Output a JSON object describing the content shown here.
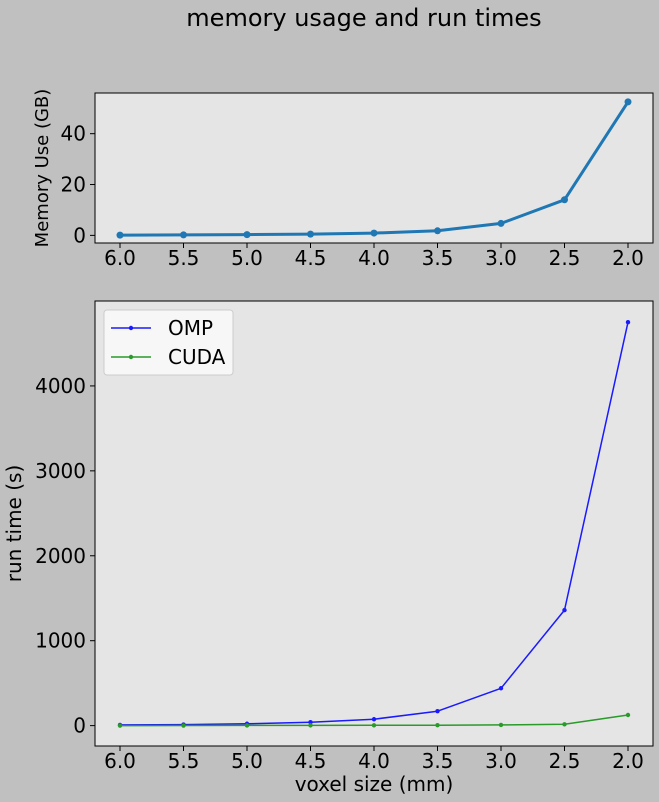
{
  "title": "memory usage and run times",
  "chart_data": [
    {
      "type": "line",
      "ylabel": "Memory Use (GB)",
      "xlabel": "",
      "x": [
        6.0,
        5.5,
        5.0,
        4.5,
        4.0,
        3.5,
        3.0,
        2.5,
        2.0
      ],
      "x_tick_labels": [
        "6.0",
        "5.5",
        "5.0",
        "4.5",
        "4.0",
        "3.5",
        "3.0",
        "2.5",
        "2.0"
      ],
      "x_direction": "reversed",
      "ylim": [
        -3,
        56
      ],
      "yticks": [
        0,
        20,
        40
      ],
      "grid": false,
      "series": [
        {
          "name": "",
          "color": "#1f77b4",
          "values": [
            0.1,
            0.2,
            0.3,
            0.5,
            0.9,
            1.8,
            4.7,
            14.0,
            52.5
          ]
        }
      ]
    },
    {
      "type": "line",
      "ylabel": "run time (s)",
      "xlabel": "voxel size (mm)",
      "x": [
        6.0,
        5.5,
        5.0,
        4.5,
        4.0,
        3.5,
        3.0,
        2.5,
        2.0
      ],
      "x_tick_labels": [
        "6.0",
        "5.5",
        "5.0",
        "4.5",
        "4.0",
        "3.5",
        "3.0",
        "2.5",
        "2.0"
      ],
      "x_direction": "reversed",
      "ylim": [
        -240,
        5000
      ],
      "yticks": [
        0,
        1000,
        2000,
        3000,
        4000
      ],
      "grid": false,
      "legend": "top-left",
      "series": [
        {
          "name": "OMP",
          "color": "#1a1aff",
          "values": [
            8,
            12,
            22,
            40,
            75,
            170,
            440,
            1360,
            4750
          ]
        },
        {
          "name": "CUDA",
          "color": "#2a9a2a",
          "values": [
            0,
            1,
            2,
            3,
            4,
            5,
            8,
            15,
            125
          ]
        }
      ]
    }
  ]
}
